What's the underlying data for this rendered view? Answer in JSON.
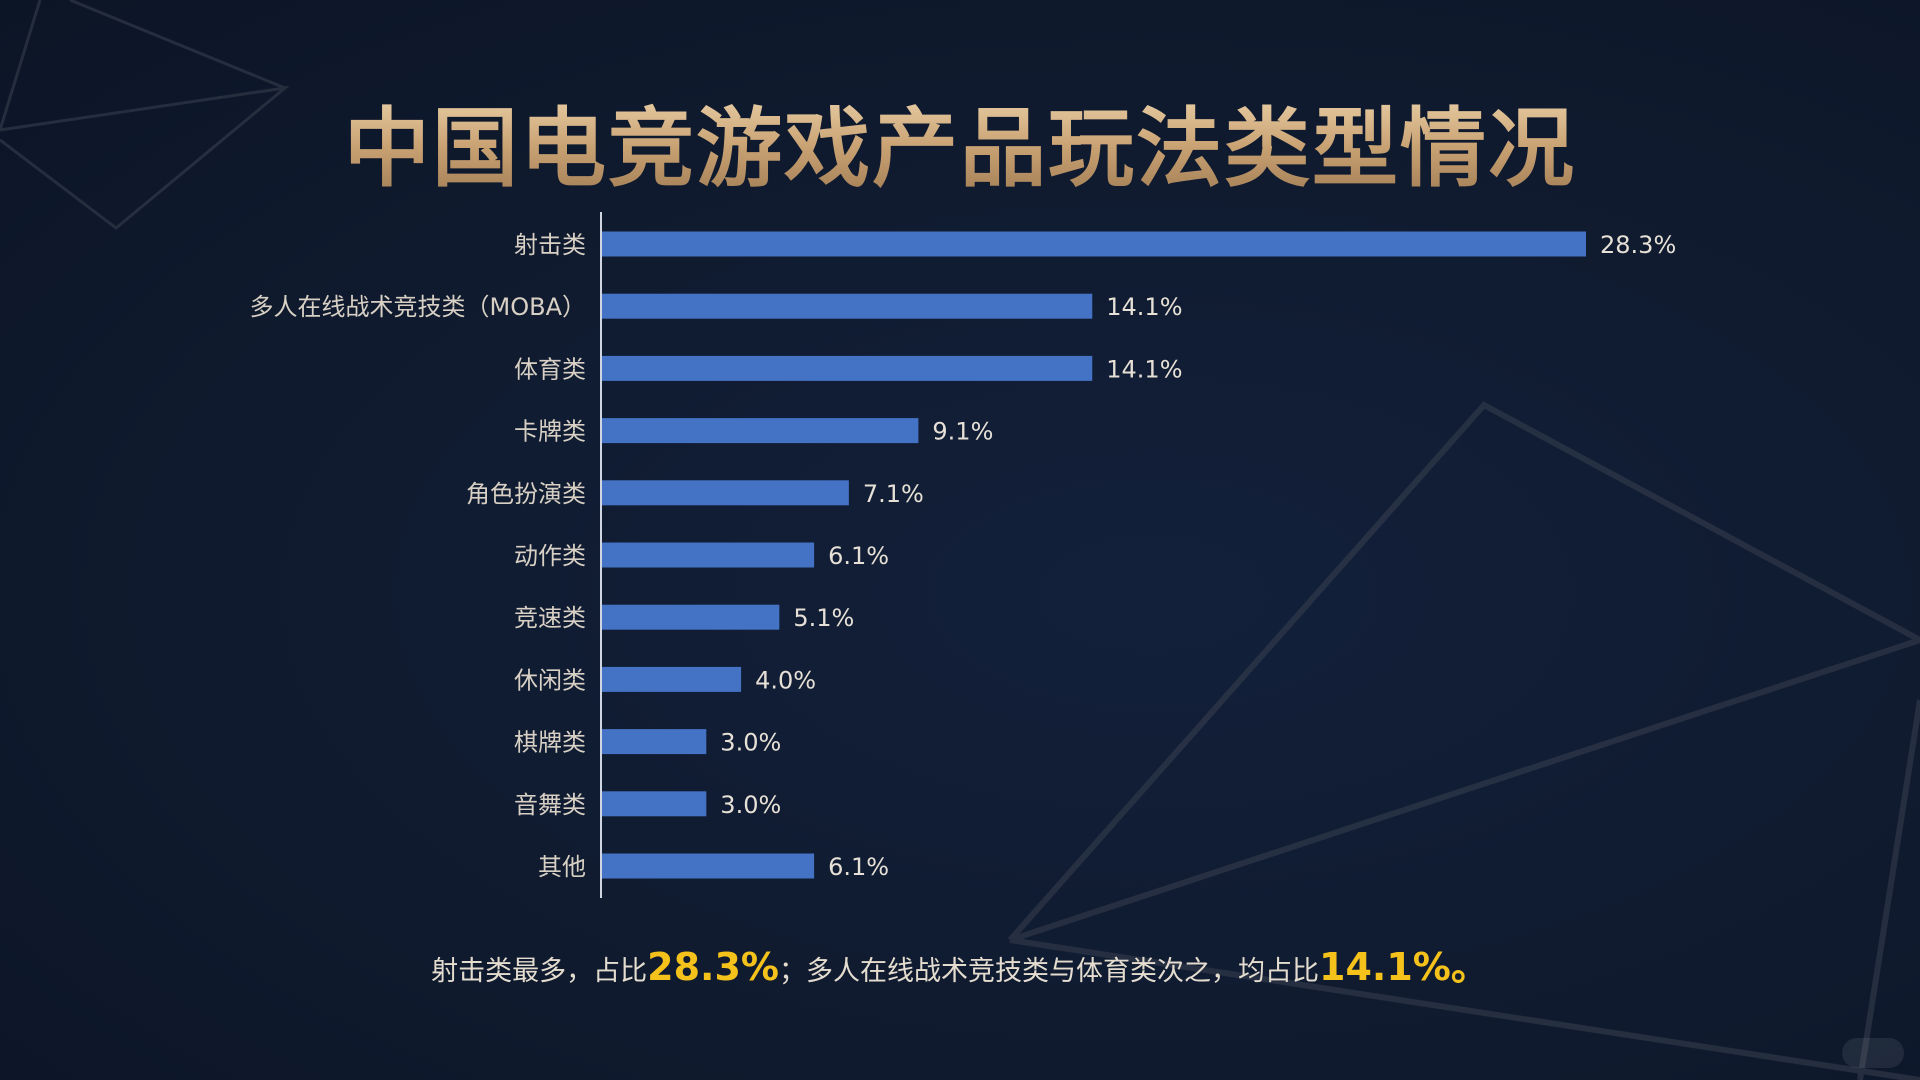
{
  "title": "中国电竞游戏产品玩法类型情况",
  "chart_data": {
    "type": "bar",
    "orientation": "horizontal",
    "categories": [
      "射击类",
      "多人在线战术竞技类（MOBA）",
      "体育类",
      "卡牌类",
      "角色扮演类",
      "动作类",
      "竞速类",
      "休闲类",
      "棋牌类",
      "音舞类",
      "其他"
    ],
    "values": [
      28.3,
      14.1,
      14.1,
      9.1,
      7.1,
      6.1,
      5.1,
      4.0,
      3.0,
      3.0,
      6.1
    ],
    "value_labels": [
      "28.3%",
      "14.1%",
      "14.1%",
      "9.1%",
      "7.1%",
      "6.1%",
      "5.1%",
      "4.0%",
      "3.0%",
      "3.0%",
      "6.1%"
    ],
    "xlim": [
      0,
      30
    ],
    "bar_color": "#4472c4",
    "grid": false,
    "legend": "none"
  },
  "summary": {
    "part1": "射击类最多，占比",
    "highlight1": "28.3%",
    "part2": "；多人在线战术竞技类与体育类次之，均占比",
    "highlight2": "14.1%。"
  },
  "colors": {
    "background": "#0f1a2e",
    "title_gold": "#d8b98a",
    "highlight": "#f5c21b",
    "text": "#e4dccf"
  }
}
